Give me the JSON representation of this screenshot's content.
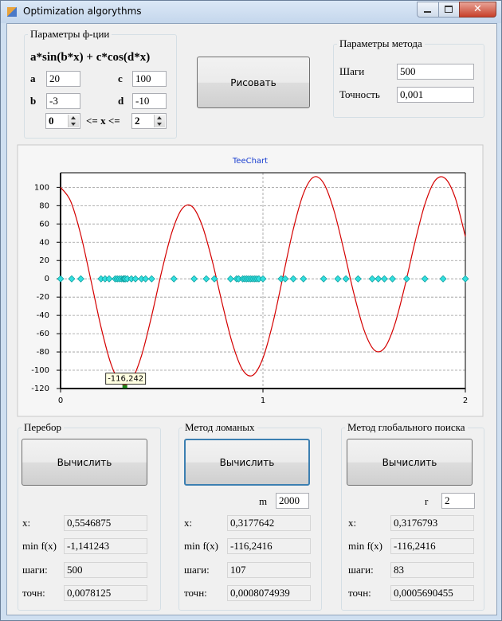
{
  "window": {
    "title": "Optimization algorythms"
  },
  "function_params": {
    "title": "Параметры ф-ции",
    "formula": "a*sin(b*x) + c*cos(d*x)",
    "fields": [
      {
        "label": "a",
        "value": "20"
      },
      {
        "label": "b",
        "value": "-3"
      },
      {
        "label": "c",
        "value": "100"
      },
      {
        "label": "d",
        "value": "-10"
      }
    ],
    "range": {
      "from": "0",
      "separator": "<= x <=",
      "to": "2"
    }
  },
  "draw_button": "Рисовать",
  "method_params": {
    "title": "Параметры метода",
    "fields": [
      {
        "label": "Шаги",
        "value": "500"
      },
      {
        "label": "Точность",
        "value": "0,001"
      }
    ]
  },
  "chart_data": {
    "type": "line",
    "title": "TeeChart",
    "series": [
      {
        "type": "line",
        "color": "#d40000",
        "x": [
          0,
          0.05,
          0.1,
          0.15,
          0.2,
          0.25,
          0.3,
          0.35,
          0.4,
          0.45,
          0.5,
          0.55,
          0.6,
          0.65,
          0.7,
          0.75,
          0.8,
          0.85,
          0.9,
          0.95,
          1,
          1.05,
          1.1,
          1.15,
          1.2,
          1.25,
          1.3,
          1.35,
          1.4,
          1.45,
          1.5,
          1.55,
          1.6,
          1.65,
          1.7,
          1.75,
          1.8,
          1.85,
          1.9,
          1.95,
          2
        ],
        "values": [
          100,
          84.8,
          48.1,
          -1.6,
          -52.9,
          -93.7,
          -114.7,
          -111.0,
          -84.0,
          -40.6,
          8.4,
          50.9,
          76.5,
          79.1,
          58.1,
          19.1,
          -28.1,
          -71.4,
          -99.7,
          -105.5,
          -86.7,
          -47.4,
          3.6,
          54.4,
          93.2,
          111.2,
          104.5,
          75.3,
          31.1,
          -16.8,
          -56.4,
          -77.9,
          -75.8,
          -50.8,
          -9.0,
          39.1,
          81.5,
          107.3,
          109.9,
          88.6,
          46.4
        ]
      },
      {
        "type": "scatter",
        "color": "#33dede",
        "x": [
          0,
          0.055,
          0.1,
          0.2,
          0.22,
          0.24,
          0.27,
          0.28,
          0.29,
          0.3,
          0.31,
          0.315,
          0.32,
          0.33,
          0.35,
          0.37,
          0.4,
          0.42,
          0.45,
          0.56,
          0.66,
          0.72,
          0.76,
          0.84,
          0.87,
          0.88,
          0.9,
          0.91,
          0.92,
          0.93,
          0.94,
          0.95,
          0.96,
          0.97,
          0.98,
          1,
          1.09,
          1.11,
          1.15,
          1.2,
          1.3,
          1.37,
          1.41,
          1.47,
          1.54,
          1.57,
          1.6,
          1.64,
          1.71,
          1.8,
          1.89,
          2
        ],
        "values": [
          0,
          0,
          0,
          0,
          0,
          0,
          0,
          0,
          0,
          0,
          0,
          0,
          0,
          0,
          0,
          0,
          0,
          0,
          0,
          0,
          0,
          0,
          0,
          0,
          0,
          0,
          0,
          0,
          0,
          0,
          0,
          0,
          0,
          0,
          0,
          0,
          0,
          0,
          0,
          0,
          0,
          0,
          0,
          0,
          0,
          0,
          0,
          0,
          0,
          0,
          0,
          0
        ]
      }
    ],
    "annotation": {
      "text": "-116,242",
      "x": 0.3177,
      "y": -116.242
    },
    "xlim": [
      0,
      2
    ],
    "ylim": [
      -120,
      116
    ],
    "xticks": [
      0,
      1,
      2
    ],
    "yticks": [
      -120,
      -100,
      -80,
      -60,
      -40,
      -20,
      0,
      20,
      40,
      60,
      80,
      100
    ],
    "grid": true
  },
  "groups": [
    {
      "title": "Перебор",
      "button": "Вычислить",
      "results": [
        {
          "label": "x:",
          "value": "0,5546875"
        },
        {
          "label": "min f(x)",
          "value": "-1,141243"
        },
        {
          "label": "шаги:",
          "value": "500"
        },
        {
          "label": "точн:",
          "value": "0,0078125"
        }
      ]
    },
    {
      "title": "Метод ломаных",
      "button": "Вычислить",
      "param": {
        "label": "m",
        "value": "2000"
      },
      "results": [
        {
          "label": "x:",
          "value": "0,3177642"
        },
        {
          "label": "min f(x)",
          "value": "-116,2416"
        },
        {
          "label": "шаги:",
          "value": "107"
        },
        {
          "label": "точн:",
          "value": "0,0008074939"
        }
      ]
    },
    {
      "title": "Метод глобального поиска",
      "button": "Вычислить",
      "param": {
        "label": "r",
        "value": "2"
      },
      "results": [
        {
          "label": "x:",
          "value": "0,3176793"
        },
        {
          "label": "min f(x)",
          "value": "-116,2416"
        },
        {
          "label": "шаги:",
          "value": "83"
        },
        {
          "label": "точн:",
          "value": "0,0005690455"
        }
      ]
    }
  ]
}
